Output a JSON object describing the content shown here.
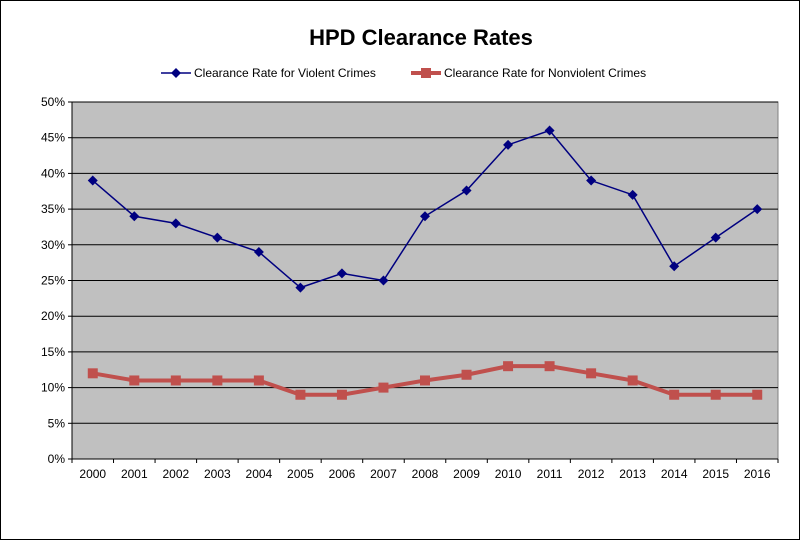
{
  "chart_data": {
    "type": "line",
    "title": "HPD Clearance Rates",
    "xlabel": "",
    "ylabel": "",
    "categories": [
      "2000",
      "2001",
      "2002",
      "2003",
      "2004",
      "2005",
      "2006",
      "2007",
      "2008",
      "2009",
      "2010",
      "2011",
      "2012",
      "2013",
      "2014",
      "2015",
      "2016"
    ],
    "ylim": [
      0,
      50
    ],
    "yticks": [
      "0%",
      "5%",
      "10%",
      "15%",
      "20%",
      "25%",
      "30%",
      "35%",
      "40%",
      "45%",
      "50%"
    ],
    "grid": true,
    "legend_position": "top",
    "plot_background": "#c0c0c0",
    "series": [
      {
        "name": "Clearance Rate for Violent Crimes",
        "color": "#000080",
        "marker": "diamond",
        "values": [
          39,
          34,
          33,
          31,
          29,
          24,
          26,
          25,
          34,
          37.6,
          44,
          46,
          39,
          37,
          27,
          31,
          35
        ]
      },
      {
        "name": "Clearance Rate for Nonviolent Crimes",
        "color": "#c0504d",
        "marker": "square",
        "values": [
          12,
          11,
          11,
          11,
          11,
          9,
          9,
          10,
          11,
          11.8,
          13,
          13,
          12,
          11,
          9,
          9,
          9
        ]
      }
    ]
  }
}
